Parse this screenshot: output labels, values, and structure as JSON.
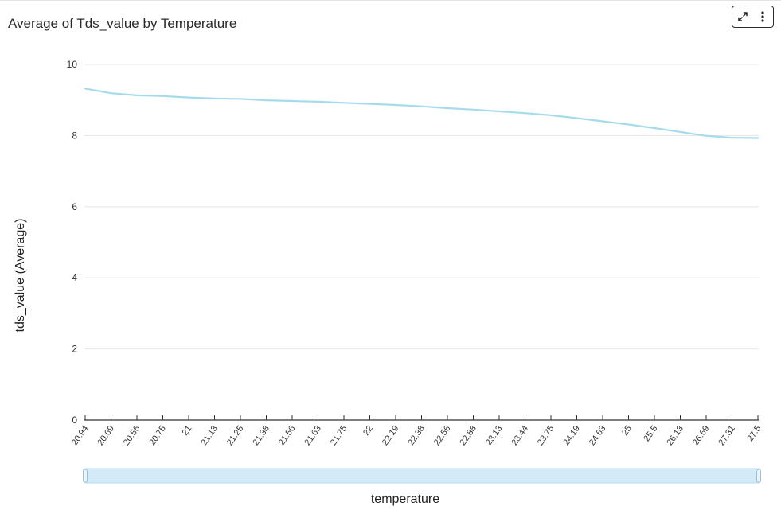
{
  "chart_data": {
    "type": "line",
    "title": "Average of Tds_value by Temperature",
    "xlabel": "temperature",
    "ylabel": "tds_value (Average)",
    "ylim": [
      0,
      10
    ],
    "yticks": [
      0,
      2,
      4,
      6,
      8,
      10
    ],
    "grid": true,
    "x_tick_labels": [
      "20.94",
      "20.69",
      "20.56",
      "20.75",
      "21",
      "21.13",
      "21.25",
      "21.38",
      "21.56",
      "21.63",
      "21.75",
      "22",
      "22.19",
      "22.38",
      "22.56",
      "22.88",
      "23.13",
      "23.44",
      "23.75",
      "24.19",
      "24.63",
      "25",
      "25.5",
      "26.13",
      "26.69",
      "27.31",
      "27.5"
    ],
    "series": [
      {
        "color": "#a4dcee",
        "values": [
          9.32,
          9.19,
          9.13,
          9.11,
          9.07,
          9.04,
          9.03,
          8.99,
          8.97,
          8.95,
          8.92,
          8.89,
          8.86,
          8.82,
          8.77,
          8.73,
          8.68,
          8.63,
          8.57,
          8.49,
          8.4,
          8.31,
          8.21,
          8.1,
          7.99,
          7.94,
          7.93
        ]
      }
    ]
  },
  "toolbar": {
    "expand_icon": "expand-icon",
    "menu_icon": "more-vertical-icon"
  },
  "range_slider": {
    "start": 0,
    "end": 1
  }
}
